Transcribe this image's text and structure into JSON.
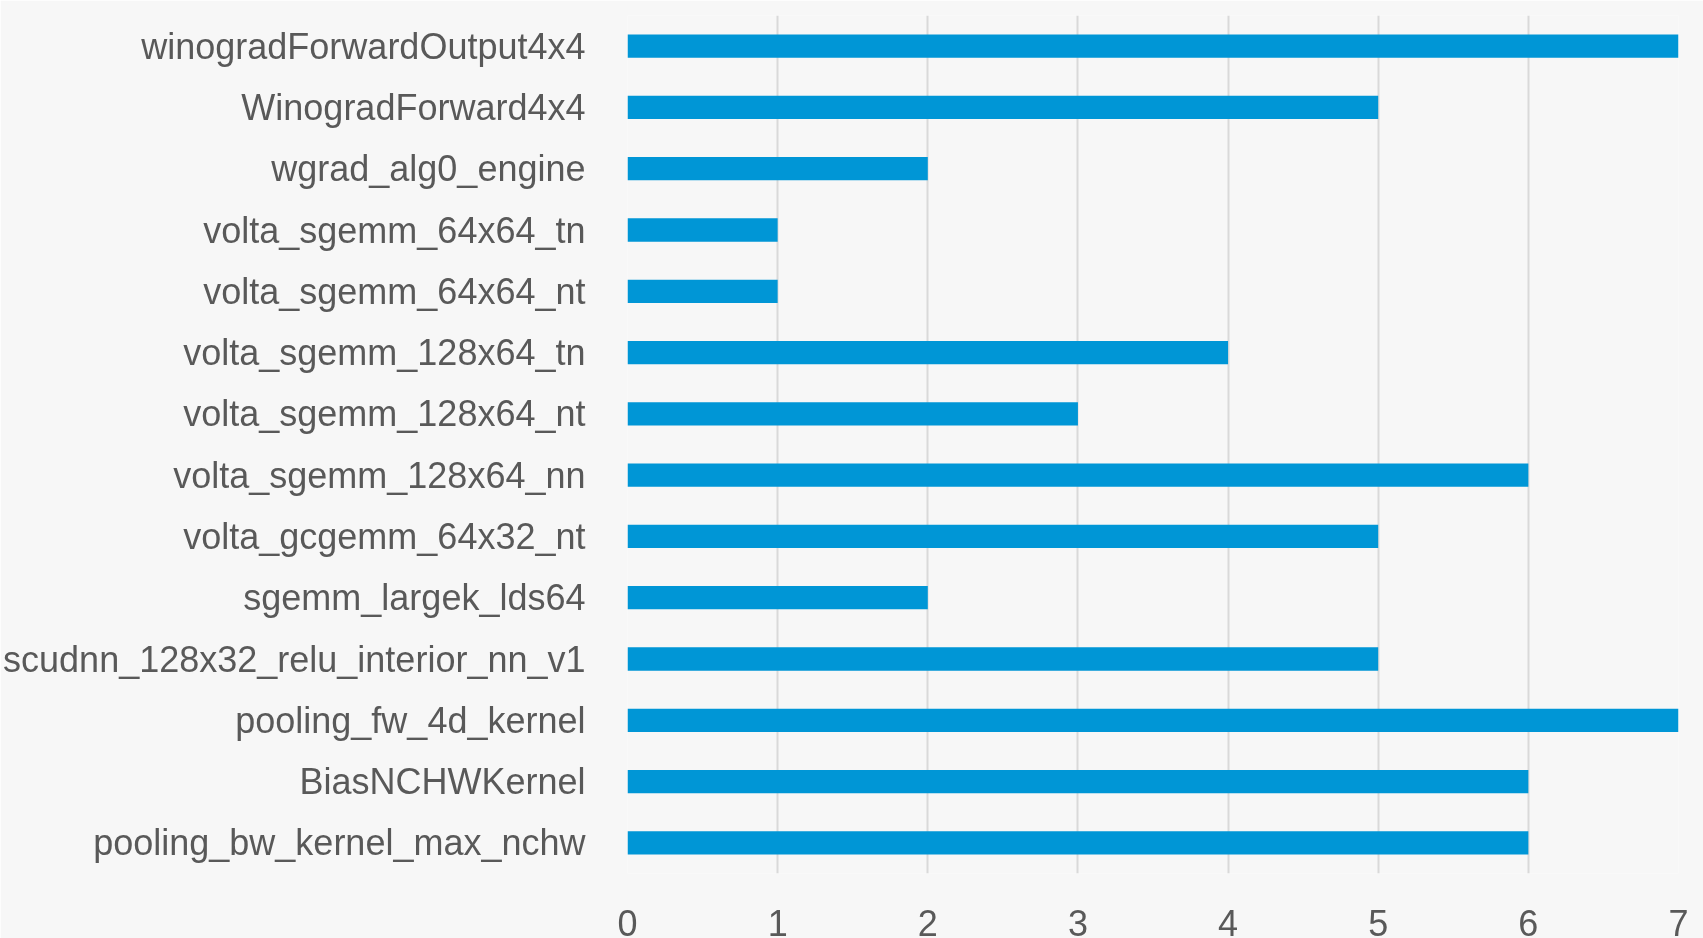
{
  "chart_data": {
    "type": "bar",
    "orientation": "horizontal",
    "categories": [
      "winogradForwardOutput4x4",
      "WinogradForward4x4",
      "wgrad_alg0_engine",
      "volta_sgemm_64x64_tn",
      "volta_sgemm_64x64_nt",
      "volta_sgemm_128x64_tn",
      "volta_sgemm_128x64_nt",
      "volta_sgemm_128x64_nn",
      "volta_gcgemm_64x32_nt",
      "sgemm_largek_lds64",
      "scudnn_128x32_relu_interior_nn_v1",
      "pooling_fw_4d_kernel",
      "BiasNCHWKernel",
      "pooling_bw_kernel_max_nchw"
    ],
    "values": [
      7,
      5,
      2,
      1,
      1,
      4,
      3,
      6,
      5,
      2,
      5,
      7,
      6,
      6
    ],
    "color": "#0096d6",
    "xlim": [
      0,
      7
    ],
    "xticks": [
      0,
      1,
      2,
      3,
      4,
      5,
      6,
      7
    ],
    "grid": "x"
  }
}
